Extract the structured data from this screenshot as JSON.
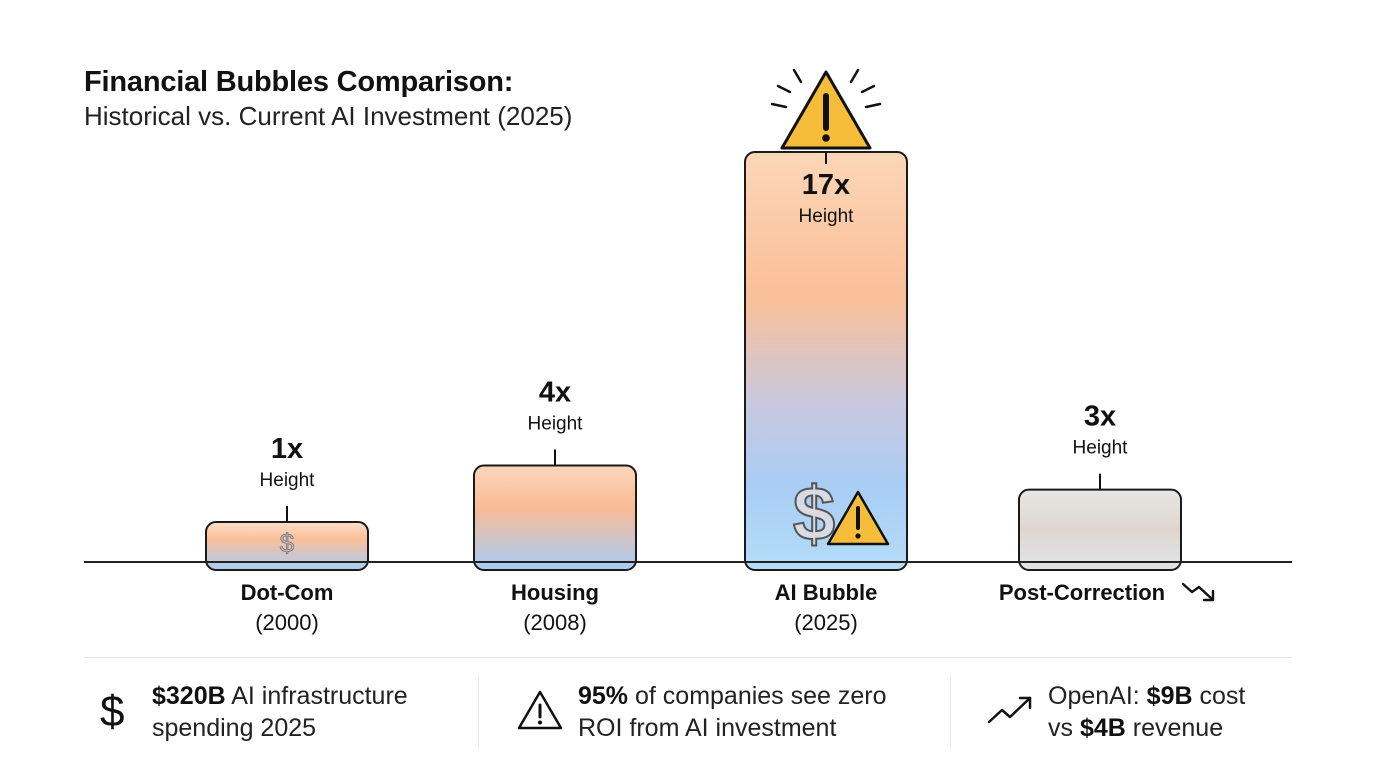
{
  "title": "Financial Bubbles Comparison:",
  "subtitle": "Historical vs. Current AI Investment (2025)",
  "chart_data": {
    "type": "bar",
    "categories": [
      "Dot-Com",
      "Housing",
      "AI Bubble",
      "Post-Correction"
    ],
    "years": [
      "(2000)",
      "(2008)",
      "(2025)",
      ""
    ],
    "values": [
      1,
      4,
      17,
      3
    ],
    "value_labels": [
      "1x",
      "4x",
      "17x",
      "3x"
    ],
    "value_sublabel": "Height",
    "ylim": [
      0,
      17
    ],
    "xlabel": "",
    "ylabel": "",
    "icons": [
      "dollar-icon",
      "",
      "dollar-warning-icon",
      "trend-down-icon"
    ]
  },
  "stats": [
    {
      "icon": "dollar-icon",
      "glyph": "$",
      "bold": "$320B",
      "rest1": " AI infrastructure",
      "line2": "spending 2025"
    },
    {
      "icon": "warning-triangle-icon",
      "bold": "95%",
      "rest1": " of companies see zero",
      "line2": "ROI from AI investment"
    },
    {
      "icon": "trend-up-icon",
      "line1_pre": "OpenAI: ",
      "line1_bold": "$9B",
      "line1_post": " cost",
      "line2_pre": "vs ",
      "line2_bold": "$4B",
      "line2_post": " revenue"
    }
  ]
}
